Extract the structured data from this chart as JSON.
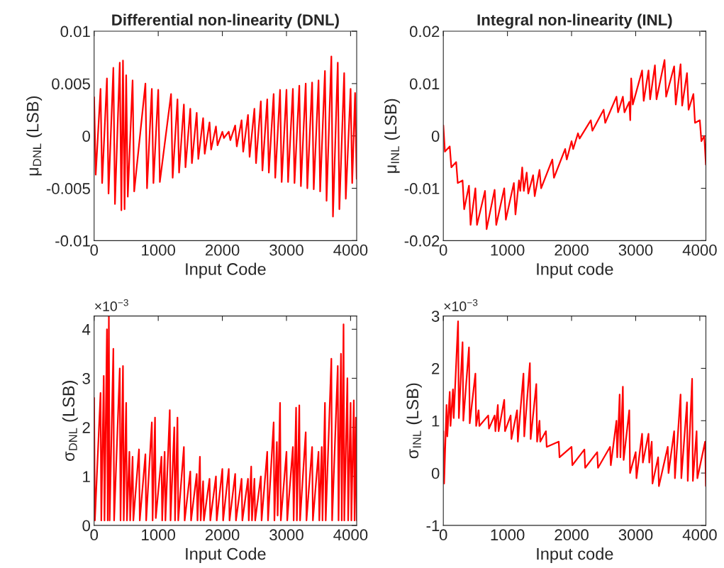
{
  "chart_data": [
    {
      "type": "line",
      "title": "Differential non-linearity (DNL)",
      "xlabel": "Input Code",
      "ylabel": "μ$_{DNL}$ (LSB)",
      "xlim": [
        0,
        4095
      ],
      "xticks": [
        0,
        1000,
        2000,
        3000,
        4000
      ],
      "ylim": [
        -0.01,
        0.01
      ],
      "yticks": [
        -0.01,
        -0.005,
        0,
        0.005,
        0.01
      ],
      "grid": false,
      "marker": "none",
      "line_style": "solid",
      "series": [
        {
          "color": "#ff0000",
          "x": [
            0,
            25,
            100,
            125,
            200,
            225,
            300,
            325,
            400,
            425,
            450,
            475,
            500,
            525,
            600,
            625,
            800,
            825,
            900,
            925,
            1000,
            1025,
            1200,
            1225,
            1300,
            1325,
            1400,
            1425,
            1500,
            1525,
            1600,
            1625,
            1700,
            1725,
            1800,
            1825,
            1900,
            1925,
            2000,
            2025,
            2048,
            2100,
            2125,
            2200,
            2225,
            2300,
            2325,
            2400,
            2425,
            2500,
            2525,
            2600,
            2625,
            2700,
            2725,
            2800,
            2825,
            2900,
            2925,
            3000,
            3025,
            3100,
            3125,
            3200,
            3225,
            3300,
            3325,
            3400,
            3425,
            3500,
            3525,
            3600,
            3625,
            3700,
            3725,
            3800,
            3825,
            3900,
            3925,
            4000,
            4025,
            4070,
            4095
          ],
          "values": [
            0.0037,
            -0.0037,
            0.0045,
            -0.0045,
            0.0055,
            -0.0055,
            0.0065,
            -0.0065,
            0.007,
            -0.0071,
            0.0072,
            -0.007,
            0.0058,
            -0.0058,
            0.0053,
            -0.0053,
            0.005,
            -0.005,
            0.0045,
            -0.0045,
            0.0044,
            -0.0044,
            0.004,
            -0.004,
            0.0035,
            -0.0035,
            0.003,
            -0.003,
            0.0026,
            -0.0026,
            0.0022,
            -0.0022,
            0.0017,
            -0.0017,
            0.0013,
            -0.0013,
            0.0009,
            -0.0009,
            0.0004,
            -0.0002,
            0,
            0.0004,
            -0.0004,
            0.001,
            -0.001,
            0.0015,
            -0.0015,
            0.002,
            -0.002,
            0.0026,
            -0.0026,
            0.0033,
            -0.0033,
            0.0035,
            -0.0035,
            0.004,
            -0.004,
            0.0044,
            -0.0044,
            0.0044,
            -0.0044,
            0.0045,
            -0.0045,
            0.0048,
            -0.0048,
            0.005,
            -0.005,
            0.0051,
            -0.0051,
            0.0053,
            -0.0053,
            0.0062,
            -0.0062,
            0.0076,
            -0.0077,
            0.007,
            -0.007,
            0.006,
            -0.006,
            0.0045,
            -0.0045,
            0.0041,
            -0.0041
          ]
        }
      ]
    },
    {
      "type": "line",
      "title": "Integral non-linearity (INL)",
      "xlabel": "Input code",
      "ylabel": "μ$_{INL}$ (LSB)",
      "xlim": [
        0,
        4095
      ],
      "xticks": [
        0,
        1000,
        2000,
        3000,
        4000
      ],
      "ylim": [
        -0.02,
        0.02
      ],
      "yticks": [
        -0.02,
        -0.01,
        0,
        0.01,
        0.02
      ],
      "grid": false,
      "marker": "none",
      "line_style": "solid",
      "series": [
        {
          "color": "#ff0000",
          "x": [
            0,
            25,
            100,
            125,
            200,
            225,
            300,
            325,
            400,
            425,
            500,
            525,
            650,
            675,
            800,
            825,
            950,
            975,
            1100,
            1125,
            1180,
            1200,
            1230,
            1255,
            1300,
            1325,
            1400,
            1425,
            1500,
            1525,
            1700,
            1725,
            1900,
            1925,
            2000,
            2025,
            2100,
            2125,
            2300,
            2325,
            2500,
            2525,
            2700,
            2725,
            2800,
            2825,
            2900,
            2915,
            2930,
            2955,
            3100,
            3125,
            3200,
            3225,
            3300,
            3325,
            3450,
            3475,
            3600,
            3625,
            3700,
            3725,
            3800,
            3825,
            3900,
            3925,
            4000,
            4025,
            4070,
            4095
          ],
          "values": [
            0.002,
            -0.003,
            -0.002,
            -0.006,
            -0.005,
            -0.009,
            -0.0085,
            -0.014,
            -0.0095,
            -0.017,
            -0.01,
            -0.017,
            -0.0105,
            -0.0178,
            -0.0103,
            -0.017,
            -0.01,
            -0.016,
            -0.009,
            -0.015,
            -0.0085,
            -0.0105,
            -0.006,
            -0.0105,
            -0.007,
            -0.011,
            -0.0075,
            -0.0115,
            -0.0065,
            -0.01,
            -0.0045,
            -0.008,
            -0.0025,
            -0.0045,
            -0.001,
            -0.0025,
            0.0005,
            -0.0005,
            0.003,
            0.001,
            0.005,
            0.0025,
            0.0075,
            0.0045,
            0.0075,
            0.0045,
            0.0065,
            0.003,
            0.011,
            0.006,
            0.0125,
            0.0067,
            0.0125,
            0.007,
            0.0135,
            0.007,
            0.0145,
            0.0075,
            0.0133,
            0.006,
            0.0137,
            0.0058,
            0.012,
            0.005,
            0.008,
            0.0025,
            0.003,
            -0.001,
            0.0,
            -0.0055
          ]
        }
      ]
    },
    {
      "type": "line",
      "xlabel": "Input Code",
      "ylabel": "σ$_{DNL}$ (LSB)",
      "annotations": [
        "×10$^{−3}$"
      ],
      "xlim": [
        0,
        4095
      ],
      "xticks": [
        0,
        1000,
        2000,
        3000,
        4000
      ],
      "ylim": [
        0,
        4.27
      ],
      "yticks": [
        0,
        1,
        2,
        3,
        4
      ],
      "grid": false,
      "marker": "none",
      "line_style": "solid",
      "series": [
        {
          "color": "#ff0000",
          "x": [
            0,
            12,
            100,
            112,
            150,
            162,
            200,
            212,
            230,
            242,
            300,
            312,
            400,
            412,
            450,
            462,
            500,
            512,
            550,
            562,
            600,
            612,
            700,
            712,
            800,
            812,
            900,
            912,
            950,
            962,
            1050,
            1062,
            1100,
            1112,
            1180,
            1192,
            1250,
            1262,
            1300,
            1312,
            1400,
            1412,
            1500,
            1512,
            1600,
            1612,
            1650,
            1662,
            1700,
            1712,
            1800,
            1812,
            1900,
            1912,
            2000,
            2012,
            2100,
            2112,
            2200,
            2212,
            2300,
            2312,
            2400,
            2412,
            2450,
            2462,
            2500,
            2512,
            2600,
            2612,
            2700,
            2712,
            2800,
            2812,
            2850,
            2862,
            2900,
            2912,
            3000,
            3012,
            3100,
            3112,
            3150,
            3162,
            3200,
            3212,
            3300,
            3312,
            3400,
            3412,
            3500,
            3512,
            3550,
            3562,
            3600,
            3612,
            3700,
            3712,
            3800,
            3812,
            3850,
            3862,
            3890,
            3902,
            3950,
            3962,
            4000,
            4012,
            4050,
            4062,
            4083,
            4095
          ],
          "values": [
            2.6,
            0.1,
            2.7,
            0.1,
            3.05,
            0.1,
            4.0,
            0.1,
            4.27,
            0.1,
            3.6,
            0.1,
            3.2,
            0.1,
            3.25,
            0.1,
            2.5,
            0.1,
            1.5,
            0.1,
            1.4,
            0.1,
            1.55,
            0.1,
            1.45,
            0.1,
            2.1,
            0.1,
            2.2,
            0.15,
            1.4,
            0.1,
            1.5,
            0.1,
            2.35,
            0.1,
            2.0,
            0.1,
            2.2,
            0.1,
            1.6,
            0.1,
            1.1,
            0.1,
            1.05,
            0.1,
            1.4,
            0.1,
            0.9,
            0.1,
            0.95,
            0.1,
            1.0,
            0.1,
            1.15,
            0.1,
            1.15,
            0.1,
            1.05,
            0.1,
            0.95,
            0.1,
            0.95,
            0.1,
            1.2,
            0.1,
            0.95,
            0.1,
            1.0,
            0.1,
            1.5,
            0.1,
            2.1,
            0.1,
            1.7,
            0.2,
            2.5,
            0.1,
            1.5,
            0.1,
            1.6,
            0.1,
            2.4,
            0.1,
            2.45,
            0.1,
            1.9,
            0.1,
            1.6,
            0.1,
            1.5,
            0.1,
            1.6,
            0.1,
            2.5,
            0.1,
            3.4,
            0.1,
            3.25,
            0.1,
            3.5,
            0.1,
            4.1,
            0.1,
            3.0,
            0.1,
            2.5,
            0.1,
            2.55,
            0.1,
            2.2,
            0.1
          ]
        }
      ]
    },
    {
      "type": "line",
      "xlabel": "Input code",
      "ylabel": "σ$_{INL}$ (LSB)",
      "annotations": [
        "×10$^{−3}$"
      ],
      "xlim": [
        0,
        4095
      ],
      "xticks": [
        0,
        1000,
        2000,
        3000,
        4000
      ],
      "ylim": [
        -1,
        3
      ],
      "yticks": [
        -1,
        0,
        1,
        2,
        3
      ],
      "grid": false,
      "marker": "none",
      "line_style": "solid",
      "series": [
        {
          "color": "#ff0000",
          "x": [
            0,
            12,
            50,
            62,
            100,
            112,
            150,
            162,
            230,
            242,
            300,
            312,
            400,
            412,
            500,
            512,
            550,
            562,
            700,
            712,
            800,
            812,
            850,
            862,
            950,
            962,
            1050,
            1062,
            1150,
            1162,
            1250,
            1262,
            1350,
            1362,
            1450,
            1462,
            1500,
            1512,
            1600,
            1612,
            1800,
            1812,
            2000,
            2012,
            2200,
            2212,
            2400,
            2412,
            2600,
            2612,
            2700,
            2712,
            2750,
            2762,
            2800,
            2812,
            2900,
            2912,
            3000,
            3012,
            3100,
            3112,
            3200,
            3212,
            3250,
            3262,
            3350,
            3362,
            3500,
            3512,
            3600,
            3612,
            3700,
            3712,
            3800,
            3812,
            3880,
            3892,
            3950,
            3962,
            4083,
            4095
          ],
          "values": [
            0.8,
            -0.2,
            1.3,
            0.7,
            1.55,
            0.9,
            1.6,
            1.05,
            2.9,
            1.05,
            2.5,
            1.0,
            2.4,
            0.95,
            1.9,
            0.9,
            1.2,
            0.9,
            1.1,
            0.85,
            1.1,
            0.8,
            1.3,
            0.8,
            1.4,
            0.8,
            1.1,
            0.65,
            1.2,
            0.6,
            1.9,
            0.7,
            2.1,
            0.65,
            1.7,
            0.6,
            1.0,
            0.6,
            0.8,
            0.5,
            0.6,
            0.3,
            0.5,
            0.15,
            0.45,
            0.1,
            0.4,
            0.1,
            0.5,
            0.15,
            1.0,
            0.3,
            1.5,
            0.3,
            1.65,
            0.25,
            1.2,
            0.0,
            0.4,
            -0.1,
            0.75,
            0.2,
            0.75,
            0.2,
            0.6,
            -0.2,
            0.3,
            -0.25,
            0.5,
            0.0,
            0.8,
            -0.1,
            1.5,
            -0.1,
            1.35,
            -0.15,
            1.8,
            -0.15,
            0.8,
            -0.1,
            0.6,
            -0.25
          ]
        }
      ]
    }
  ]
}
